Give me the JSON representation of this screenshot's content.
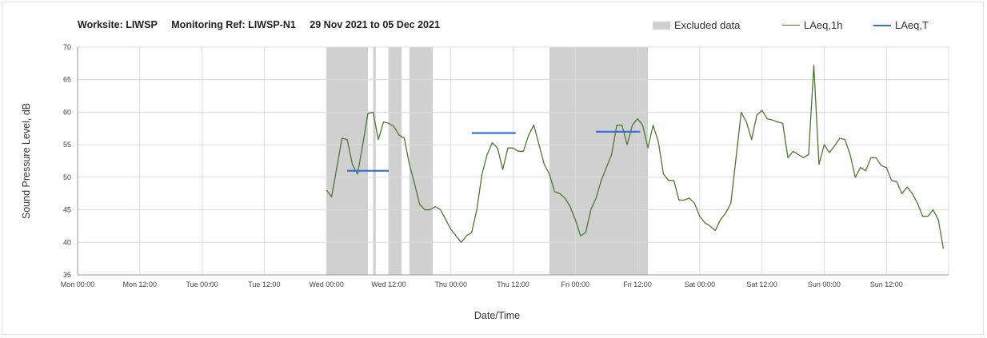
{
  "header": {
    "worksite": "Worksite: LIWSP",
    "monitoring_ref": "Monitoring Ref: LIWSP-N1",
    "date_range": "29 Nov 2021 to 05 Dec 2021"
  },
  "legend": {
    "excluded": "Excluded data",
    "laeq_1h": "LAeq,1h",
    "laeq_t": "LAeq,T"
  },
  "colors": {
    "excluded": "#d0d0d0",
    "laeq_1h": "#4a7a2e",
    "laeq_t": "#3a6fd8",
    "grid": "#dcdcdc"
  },
  "chart_data": {
    "type": "line",
    "xlabel": "Date/Time",
    "ylabel": "Sound Pressure Level, dB",
    "ylim": [
      35,
      70
    ],
    "yticks": [
      35,
      40,
      45,
      50,
      55,
      60,
      65,
      70
    ],
    "xlim_hours": [
      0,
      168
    ],
    "xticks": [
      {
        "h": 0,
        "label": "Mon 00:00"
      },
      {
        "h": 12,
        "label": "Mon 12:00"
      },
      {
        "h": 24,
        "label": "Tue 00:00"
      },
      {
        "h": 36,
        "label": "Tue 12:00"
      },
      {
        "h": 48,
        "label": "Wed 00:00"
      },
      {
        "h": 60,
        "label": "Wed 12:00"
      },
      {
        "h": 72,
        "label": "Thu 00:00"
      },
      {
        "h": 84,
        "label": "Thu 12:00"
      },
      {
        "h": 96,
        "label": "Fri 00:00"
      },
      {
        "h": 108,
        "label": "Fri 12:00"
      },
      {
        "h": 120,
        "label": "Sat 00:00"
      },
      {
        "h": 132,
        "label": "Sat 12:00"
      },
      {
        "h": 144,
        "label": "Sun 00:00"
      },
      {
        "h": 156,
        "label": "Sun 12:00"
      }
    ],
    "grid": true,
    "legend_position": "top-right",
    "excluded_ranges": [
      [
        48,
        56
      ],
      [
        57,
        57.5
      ],
      [
        60,
        62.5
      ],
      [
        64,
        68.5
      ],
      [
        91,
        110
      ]
    ],
    "laeq_1h": {
      "name": "LAeq,1h",
      "start_hour": 48,
      "values": [
        48.0,
        47.0,
        51.5,
        56.0,
        55.8,
        52.0,
        50.5,
        55.0,
        59.8,
        60.0,
        55.8,
        58.5,
        58.3,
        57.8,
        56.5,
        56.0,
        52.0,
        49.0,
        45.8,
        45.0,
        45.0,
        45.5,
        45.0,
        43.5,
        42.0,
        41.0,
        40.0,
        41.0,
        41.5,
        45.0,
        50.5,
        53.5,
        55.3,
        54.5,
        51.2,
        54.5,
        54.5,
        54.0,
        54.0,
        56.5,
        58.0,
        55.0,
        52.0,
        50.5,
        47.8,
        47.5,
        46.8,
        45.5,
        43.5,
        41.0,
        41.5,
        45.0,
        46.8,
        49.5,
        51.5,
        53.5,
        58.0,
        58.0,
        55.0,
        58.0,
        59.0,
        58.0,
        54.5,
        58.0,
        55.5,
        50.5,
        49.5,
        49.5,
        46.5,
        46.5,
        46.8,
        46.0,
        44.0,
        43.0,
        42.5,
        41.8,
        43.5,
        44.5,
        46.0,
        53.0,
        60.0,
        58.5,
        55.8,
        59.5,
        60.3,
        59.0,
        58.8,
        58.5,
        58.3,
        53.0,
        54.0,
        53.5,
        53.0,
        53.5,
        67.2,
        52.0,
        55.0,
        53.8,
        54.8,
        56.0,
        55.8,
        53.5,
        50.0,
        51.5,
        51.0,
        53.0,
        53.0,
        51.8,
        51.5,
        49.5,
        49.3,
        47.5,
        48.5,
        47.5,
        46.0,
        44.0,
        44.0,
        45.0,
        43.5,
        39.0
      ]
    },
    "laeq_t": [
      {
        "name": "LAeq,T",
        "x_start": 52,
        "x_end": 60,
        "value": 51.0
      },
      {
        "name": "LAeq,T",
        "x_start": 76,
        "x_end": 84.5,
        "value": 56.8
      },
      {
        "name": "LAeq,T",
        "x_start": 100,
        "x_end": 108.5,
        "value": 57.0
      }
    ]
  }
}
